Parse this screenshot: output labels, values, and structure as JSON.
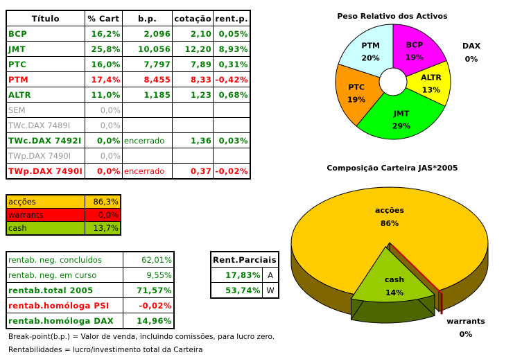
{
  "holdings": {
    "headers": [
      "Título",
      "% Cart",
      "b.p.",
      "cotação",
      "rent.p."
    ],
    "rows": [
      {
        "titulo": "BCP",
        "cart": "16,2%",
        "bp": "2,096",
        "cot": "2,10",
        "rent": "0,05%",
        "status": "green"
      },
      {
        "titulo": "JMT",
        "cart": "25,8%",
        "bp": "10,056",
        "cot": "12,20",
        "rent": "8,93%",
        "status": "green"
      },
      {
        "titulo": "PTC",
        "cart": "16,0%",
        "bp": "7,797",
        "cot": "7,89",
        "rent": "0,31%",
        "status": "green"
      },
      {
        "titulo": "PTM",
        "cart": "17,4%",
        "bp": "8,455",
        "cot": "8,33",
        "rent": "-0,42%",
        "status": "red"
      },
      {
        "titulo": "ALTR",
        "cart": "11,0%",
        "bp": "1,185",
        "cot": "1,23",
        "rent": "0,68%",
        "status": "green"
      },
      {
        "titulo": "SEM",
        "cart": "0,0%",
        "bp": "",
        "cot": "",
        "rent": "",
        "status": "grey"
      },
      {
        "titulo": "TWc.DAX 7489I",
        "cart": "0,0%",
        "bp": "",
        "cot": "",
        "rent": "",
        "status": "grey"
      },
      {
        "titulo": "TWc.DAX 7492I",
        "cart": "0,0%",
        "bp": "encerrado",
        "cot": "1,36",
        "rent": "0,03%",
        "status": "green"
      },
      {
        "titulo": "TWp.DAX 7490I",
        "cart": "0,0%",
        "bp": "",
        "cot": "",
        "rent": "",
        "status": "grey"
      },
      {
        "titulo": "TWp.DAX 7490I",
        "cart": "0,0%",
        "bp": "encerrado",
        "cot": "0,37",
        "rent": "-0,02%",
        "status": "red"
      }
    ]
  },
  "allocation": [
    {
      "label": "acções",
      "value": "86,3%",
      "color": "#ffcc00"
    },
    {
      "label": "warrants",
      "value": "0,0%",
      "color": "#ff0000"
    },
    {
      "label": "cash",
      "value": "13,7%",
      "color": "#99cc00"
    }
  ],
  "returns": [
    {
      "label": "rentab. neg. concluídos",
      "value": "62,01%",
      "style": "plain-green"
    },
    {
      "label": "rentab. neg. em curso",
      "value": "9,55%",
      "style": "plain-green"
    },
    {
      "label": "rentab.total 2005",
      "value": "71,57%",
      "style": "bold-green"
    },
    {
      "label": "rentab.homóloga PSI",
      "value": "-0,02%",
      "style": "bold-red"
    },
    {
      "label": "rentab.homóloga DAX",
      "value": "14,96%",
      "style": "bold-green"
    }
  ],
  "partial": {
    "header": "Rent.Parciais",
    "rows": [
      {
        "value": "17,83%",
        "tag": "A"
      },
      {
        "value": "53,74%",
        "tag": "W"
      }
    ]
  },
  "notes": [
    "Break-point(b.p.) = Valor de venda, incluindo comissões, para lucro zero.",
    "Rentabilidades = lucro/investimento total da Carteira"
  ],
  "chart_data": [
    {
      "type": "pie",
      "variant": "doughnut",
      "title": "Peso Relativo dos Activos",
      "slices": [
        {
          "label": "BCP",
          "value": 19,
          "text": "19%",
          "color": "#ff00ff"
        },
        {
          "label": "ALTR",
          "value": 13,
          "text": "13%",
          "color": "#ffff00"
        },
        {
          "label": "JMT",
          "value": 29,
          "text": "29%",
          "color": "#00ff00"
        },
        {
          "label": "PTC",
          "value": 19,
          "text": "19%",
          "color": "#ff9900"
        },
        {
          "label": "PTM",
          "value": 20,
          "text": "20%",
          "color": "#ccffff"
        },
        {
          "label": "DAX",
          "value": 0,
          "text": "0%",
          "color": "#000000"
        }
      ]
    },
    {
      "type": "pie",
      "variant": "3d-exploded",
      "title": "Composição Carteira JAS*2005",
      "slices": [
        {
          "label": "acções",
          "value": 86,
          "text": "86%",
          "color": "#ffcc00"
        },
        {
          "label": "warrants",
          "value": 0,
          "text": "0%",
          "color": "#ff0000"
        },
        {
          "label": "cash",
          "value": 14,
          "text": "14%",
          "color": "#99cc00"
        }
      ]
    }
  ]
}
